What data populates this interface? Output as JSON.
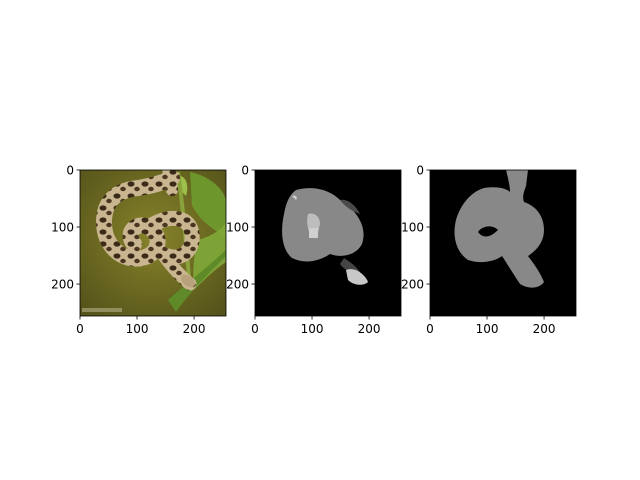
{
  "chart_data": [
    {
      "type": "image",
      "content": "photo of a spotted snake coiled on a green plant stem",
      "xlim": [
        0,
        256
      ],
      "ylim": [
        256,
        0
      ],
      "xticks": [
        0,
        100,
        200
      ],
      "yticks": [
        0,
        100,
        200
      ],
      "xtick_labels": [
        "0",
        "100",
        "200"
      ],
      "ytick_labels": [
        "0",
        "100",
        "200"
      ]
    },
    {
      "type": "image",
      "content": "segmentation mask with gray regions on black background",
      "xlim": [
        0,
        256
      ],
      "ylim": [
        256,
        0
      ],
      "xticks": [
        0,
        100,
        200
      ],
      "yticks": [
        0,
        100,
        200
      ],
      "xtick_labels": [
        "0",
        "100",
        "200"
      ],
      "ytick_labels": [
        "0",
        "100",
        "200"
      ]
    },
    {
      "type": "image",
      "content": "binary snake-shaped mask in gray on black background",
      "xlim": [
        0,
        256
      ],
      "ylim": [
        256,
        0
      ],
      "xticks": [
        0,
        100,
        200
      ],
      "yticks": [
        0,
        100,
        200
      ],
      "xtick_labels": [
        "0",
        "100",
        "200"
      ],
      "ytick_labels": [
        "0",
        "100",
        "200"
      ]
    }
  ],
  "colors": {
    "background": "#000000",
    "mask_gray": "#888888",
    "mask_light": "#b8b8b8",
    "mask_dark": "#444444",
    "photo_bg": "#6b6a1c"
  }
}
